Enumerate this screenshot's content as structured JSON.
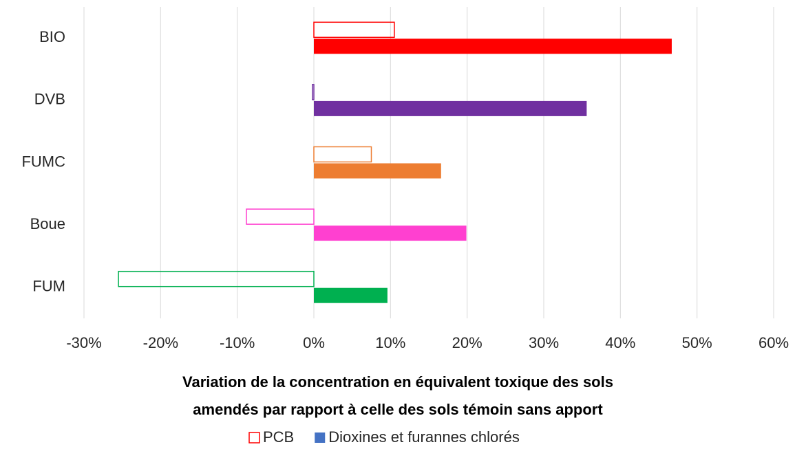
{
  "chart_data": {
    "type": "bar",
    "orientation": "horizontal",
    "xlabel": [
      "Variation de la concentration en équivalent toxique des sols",
      "amendés par rapport à celle des sols témoin sans apport"
    ],
    "categories": [
      "BIO",
      "DVB",
      "FUMC",
      "Boue",
      "FUM"
    ],
    "series": [
      {
        "name": "PCB",
        "color": "#ff0000",
        "fill": "none",
        "colors": [
          "#ff0000",
          "#7030a0",
          "#ed7d31",
          "#ff40d0",
          "#00b050"
        ],
        "values": [
          10.5,
          -0.2,
          7.5,
          -8.8,
          -25.5
        ]
      },
      {
        "name": "Dioxines et furannes chlorés",
        "color": "#4472c4",
        "fill": "solid",
        "colors": [
          "#ff0000",
          "#7030a0",
          "#ed7d31",
          "#ff40d0",
          "#00b050"
        ],
        "values": [
          46.7,
          35.6,
          16.6,
          19.9,
          9.6
        ]
      }
    ],
    "xlim": [
      -30,
      60
    ],
    "xticks": [
      {
        "value": -30,
        "label": "-30%"
      },
      {
        "value": -20,
        "label": "-20%"
      },
      {
        "value": -10,
        "label": "-10%"
      },
      {
        "value": 0,
        "label": "0%"
      },
      {
        "value": 10,
        "label": "10%"
      },
      {
        "value": 20,
        "label": "20%"
      },
      {
        "value": 30,
        "label": "30%"
      },
      {
        "value": 40,
        "label": "40%"
      },
      {
        "value": 50,
        "label": "50%"
      },
      {
        "value": 60,
        "label": "60%"
      }
    ],
    "grid": true,
    "legend": "bottom"
  }
}
